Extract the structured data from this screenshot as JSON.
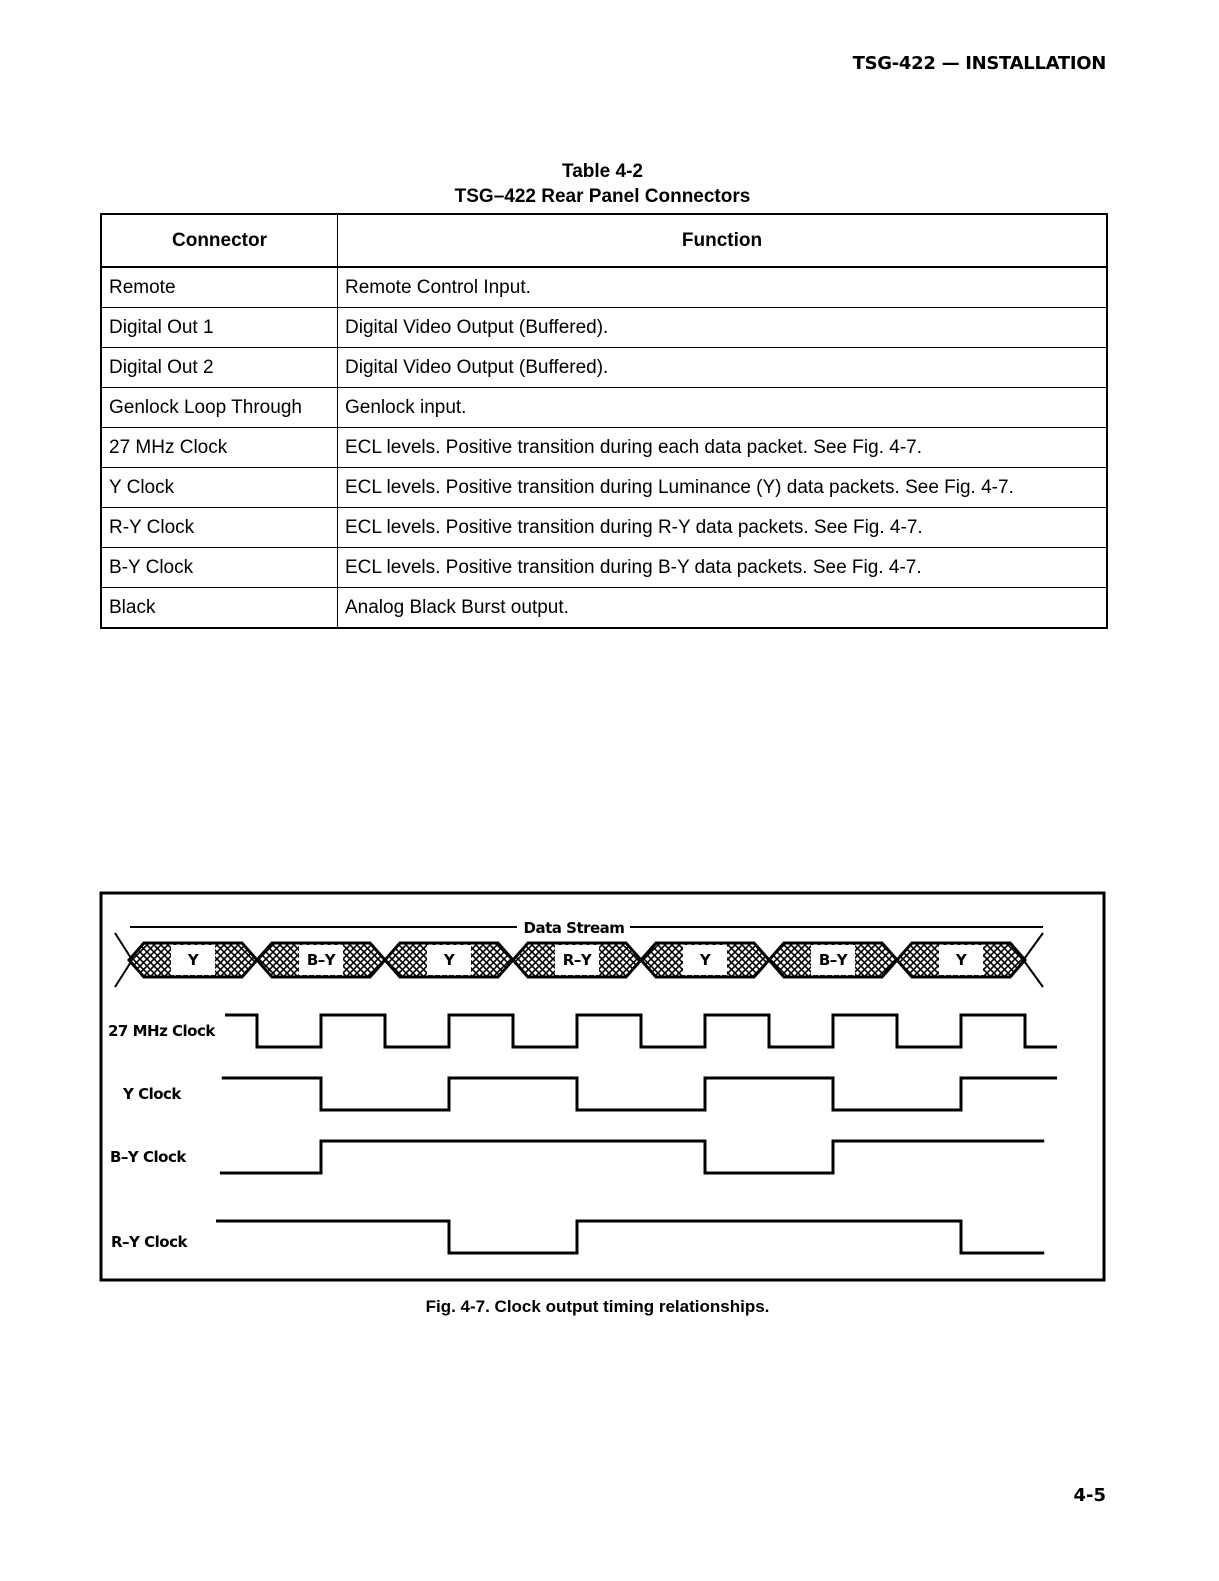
{
  "header": {
    "running_head": "TSG-422 — INSTALLATION"
  },
  "table": {
    "number": "Table 4-2",
    "title": "TSG–422 Rear Panel Connectors",
    "columns": [
      "Connector",
      "Function"
    ],
    "rows": [
      [
        "Remote",
        "Remote Control Input."
      ],
      [
        "Digital Out 1",
        "Digital Video Output (Buffered)."
      ],
      [
        "Digital Out 2",
        "Digital Video Output (Buffered)."
      ],
      [
        "Genlock Loop Through",
        "Genlock input."
      ],
      [
        "27 MHz Clock",
        "ECL levels.  Positive transition during each data packet.  See Fig. 4-7."
      ],
      [
        "Y Clock",
        "ECL levels.  Positive transition during Luminance (Y) data packets.  See Fig. 4-7."
      ],
      [
        "R-Y Clock",
        "ECL levels.  Positive transition during R-Y data packets.  See Fig. 4-7."
      ],
      [
        "B-Y Clock",
        "ECL levels.  Positive transition during B-Y data packets.  See Fig. 4-7."
      ],
      [
        "Black",
        "Analog Black Burst output."
      ]
    ]
  },
  "figure": {
    "data_stream_label": "Data Stream",
    "packets": [
      "Y",
      "B–Y",
      "Y",
      "R–Y",
      "Y",
      "B–Y",
      "Y"
    ],
    "signals": [
      {
        "label": "27 MHz Clock",
        "initial": 1,
        "start": 1.5,
        "end": 14.5,
        "edges": [
          2,
          3,
          4,
          5,
          6,
          7,
          8,
          9,
          10,
          11,
          12,
          13,
          14
        ]
      },
      {
        "label": "Y Clock",
        "initial": 1,
        "start": 1.45,
        "end": 14.5,
        "edges": [
          3,
          5,
          7,
          9,
          11,
          13
        ]
      },
      {
        "label": "B–Y Clock",
        "initial": 0,
        "start": 1.42,
        "end": 14.3,
        "edges": [
          3,
          9,
          11
        ]
      },
      {
        "label": "R–Y Clock",
        "initial": 1,
        "start": 1.36,
        "end": 14.3,
        "edges": [
          5,
          7,
          13
        ]
      }
    ],
    "caption": "Fig. 4-7.  Clock output timing relationships."
  },
  "page_number": "4-5"
}
